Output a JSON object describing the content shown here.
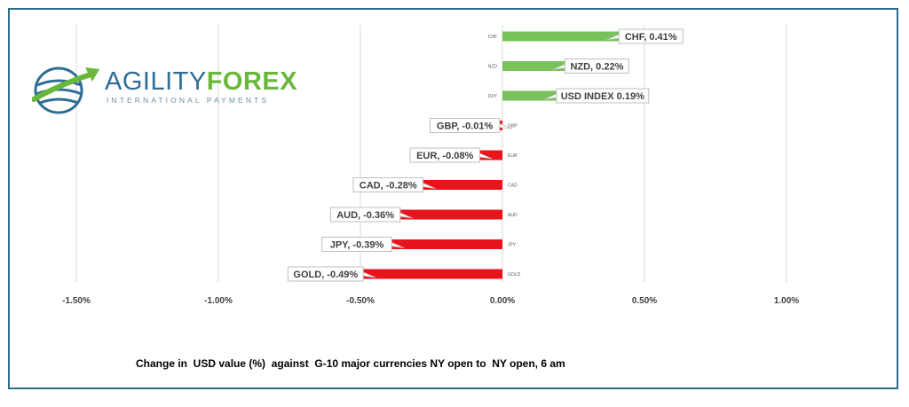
{
  "logo": {
    "name_part1": "AGILITY",
    "name_part2": "FOREX",
    "subtitle": "INTERNATIONAL PAYMENTS",
    "colors": {
      "blue": "#2f6d95",
      "green": "#6ab83b"
    }
  },
  "chart_data": {
    "type": "bar",
    "orientation": "horizontal",
    "categories": [
      "CHF",
      "NZD",
      "DXY",
      "GBP",
      "EUR",
      "CAD",
      "AUD",
      "JPY",
      "GOLD"
    ],
    "values": [
      0.41,
      0.22,
      0.19,
      -0.01,
      -0.08,
      -0.28,
      -0.36,
      -0.39,
      -0.49
    ],
    "data_labels": [
      "CHF, 0.41%",
      "NZD, 0.22%",
      "USD INDEX 0.19%",
      "GBP, -0.01%",
      "EUR, -0.08%",
      "CAD, -0.28%",
      "AUD, -0.36%",
      "JPY, -0.39%",
      "GOLD, -0.49%"
    ],
    "xlim": [
      -1.5,
      1.0
    ],
    "x_ticks": [
      -1.5,
      -1.0,
      -0.5,
      0.0,
      0.5,
      1.0
    ],
    "x_tick_labels": [
      "-1.50%",
      "-1.00%",
      "-0.50%",
      "0.00%",
      "0.50%",
      "1.00%"
    ],
    "xlabel": "Change in  USD value (%)  against  G-10 major currencies NY open to  NY open, 6 am",
    "grid": true,
    "colors": {
      "positive": "#78c25a",
      "negative": "#e8141b",
      "grid": "#d9d9d9",
      "label_border": "#bfbfbf"
    }
  }
}
